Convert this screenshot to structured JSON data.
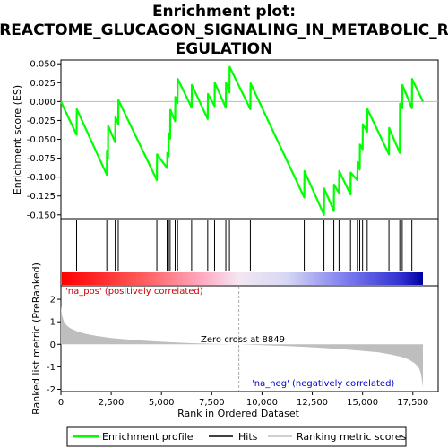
{
  "chart_data": {
    "type": "line",
    "title_lines": [
      "Enrichment plot:",
      "REACTOME_GLUCAGON_SIGNALING_IN_METABOLIC_R",
      "EGULATION"
    ],
    "top_panel": {
      "ylabel": "Enrichment score (ES)",
      "ylim": [
        -0.155,
        0.055
      ],
      "yticks": [
        0.05,
        0.025,
        0.0,
        -0.025,
        -0.05,
        -0.075,
        -0.1,
        -0.125,
        -0.15
      ],
      "ytick_labels": [
        "0.050",
        "0.025",
        "0.000",
        "-0.025",
        "-0.050",
        "-0.075",
        "-0.100",
        "-0.125",
        "-0.150"
      ],
      "series": [
        {
          "name": "Enrichment profile",
          "color": "#00ff00",
          "x": [
            0,
            780,
            790,
            2280,
            2290,
            2340,
            2350,
            2700,
            2710,
            2850,
            2860,
            4770,
            4780,
            5280,
            5290,
            5350,
            5360,
            5430,
            5440,
            5680,
            5690,
            5800,
            5810,
            6500,
            6510,
            7300,
            7310,
            7640,
            7650,
            8200,
            8210,
            8380,
            8390,
            9420,
            9430,
            12100,
            12110,
            13080,
            13090,
            13570,
            13580,
            13830,
            13840,
            14400,
            14410,
            14740,
            14750,
            14860,
            14870,
            15000,
            15010,
            15230,
            15240,
            16310,
            16320,
            16850,
            16860,
            16970,
            16980,
            17450,
            17460,
            18000
          ],
          "y": [
            0.0,
            -0.044,
            -0.01,
            -0.097,
            -0.065,
            -0.075,
            -0.032,
            -0.054,
            -0.02,
            -0.03,
            0.002,
            -0.104,
            -0.07,
            -0.088,
            -0.068,
            -0.073,
            -0.042,
            -0.049,
            -0.011,
            -0.026,
            0.006,
            -0.002,
            0.03,
            -0.008,
            0.022,
            -0.023,
            0.01,
            -0.006,
            0.025,
            -0.008,
            0.025,
            0.012,
            0.046,
            -0.01,
            0.024,
            -0.127,
            -0.092,
            -0.15,
            -0.115,
            -0.145,
            -0.11,
            -0.121,
            -0.092,
            -0.123,
            -0.094,
            -0.104,
            -0.08,
            -0.09,
            -0.057,
            -0.063,
            -0.03,
            -0.04,
            -0.01,
            -0.07,
            -0.035,
            -0.068,
            -0.003,
            -0.009,
            0.022,
            -0.009,
            0.03,
            0.0
          ]
        }
      ]
    },
    "hits_panel": {
      "positions": [
        780,
        2280,
        2340,
        2700,
        2850,
        4770,
        5280,
        5350,
        5430,
        5680,
        5800,
        6500,
        7300,
        7640,
        8200,
        8380,
        9420,
        12100,
        13080,
        13570,
        13830,
        14400,
        14740,
        14860,
        15000,
        15230,
        16310,
        16850,
        16970,
        17450
      ]
    },
    "bottom_panel": {
      "ylabel": "Ranked list metric (PreRanked)",
      "xlabel": "Rank in Ordered Dataset",
      "ylim": [
        -2.1,
        2.6
      ],
      "yticks": [
        2,
        1,
        0,
        -1,
        -2
      ],
      "ytick_labels": [
        "2",
        "1",
        "0",
        "-1",
        "-2"
      ],
      "xlim": [
        0,
        18000
      ],
      "xticks": [
        0,
        2500,
        5000,
        7500,
        10000,
        12500,
        15000,
        17500
      ],
      "xtick_labels": [
        "0",
        "2,500",
        "5,000",
        "7,500",
        "10,000",
        "12,500",
        "15,000",
        "17,500"
      ],
      "metric_profile": {
        "x": [
          0,
          50,
          150,
          300,
          500,
          800,
          1200,
          1800,
          2500,
          3500,
          4500,
          5500,
          6500,
          7500,
          8849,
          10000,
          11000,
          12000,
          13000,
          14000,
          15000,
          15800,
          16400,
          16900,
          17300,
          17600,
          17800,
          17900,
          17960,
          18000
        ],
        "y": [
          1.72,
          1.3,
          1.0,
          0.82,
          0.7,
          0.58,
          0.47,
          0.37,
          0.28,
          0.2,
          0.14,
          0.09,
          0.05,
          0.02,
          0.0,
          -0.04,
          -0.07,
          -0.11,
          -0.16,
          -0.22,
          -0.29,
          -0.36,
          -0.45,
          -0.55,
          -0.68,
          -0.85,
          -1.05,
          -1.3,
          -1.65,
          -1.9
        ]
      },
      "zero_cross_label": "Zero cross at 8849",
      "zero_cross_rank": 8849,
      "pos_label": "'na_pos' (positively correlated)",
      "neg_label": "'na_neg' (negatively correlated)"
    },
    "legend": {
      "placement": "bottom",
      "items": [
        {
          "label": "Enrichment profile",
          "color": "#00ff00"
        },
        {
          "label": "Hits",
          "color": "#000000"
        },
        {
          "label": "Ranking metric scores",
          "color": "#c0c0c0"
        }
      ]
    },
    "colors": {
      "profile": "#00ff00",
      "hits": "#000000",
      "metric_fill": "#bebebe",
      "zero_line": "#aaaaaa",
      "pos_label": "#cc0000",
      "neg_label": "#0000cc"
    }
  }
}
